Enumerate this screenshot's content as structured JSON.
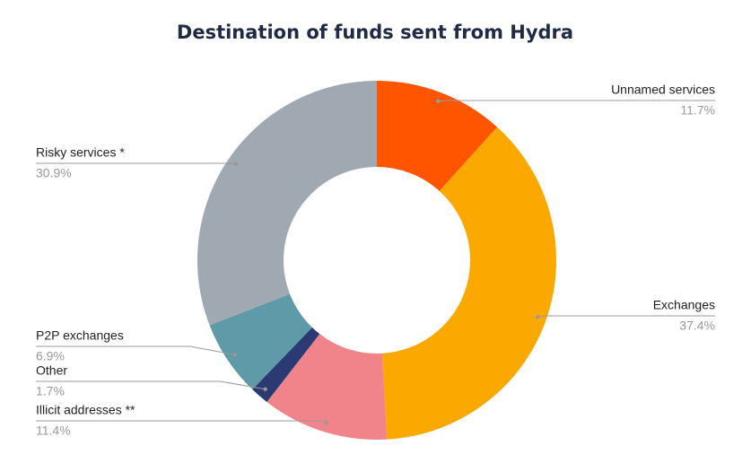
{
  "chart_data": {
    "type": "donut",
    "title": "Destination of funds sent from Hydra",
    "categories": [
      "Unnamed services",
      "Exchanges",
      "Illicit addresses **",
      "Other",
      "P2P exchanges",
      "Risky services *"
    ],
    "values": [
      11.7,
      37.4,
      11.4,
      1.7,
      6.9,
      30.9
    ],
    "value_labels": [
      "11.7%",
      "37.4%",
      "11.4%",
      "1.7%",
      "6.9%",
      "30.9%"
    ],
    "colors": [
      "#ff5500",
      "#fba800",
      "#f0848a",
      "#2b3a73",
      "#5e9aa8",
      "#a0a8b2"
    ]
  }
}
